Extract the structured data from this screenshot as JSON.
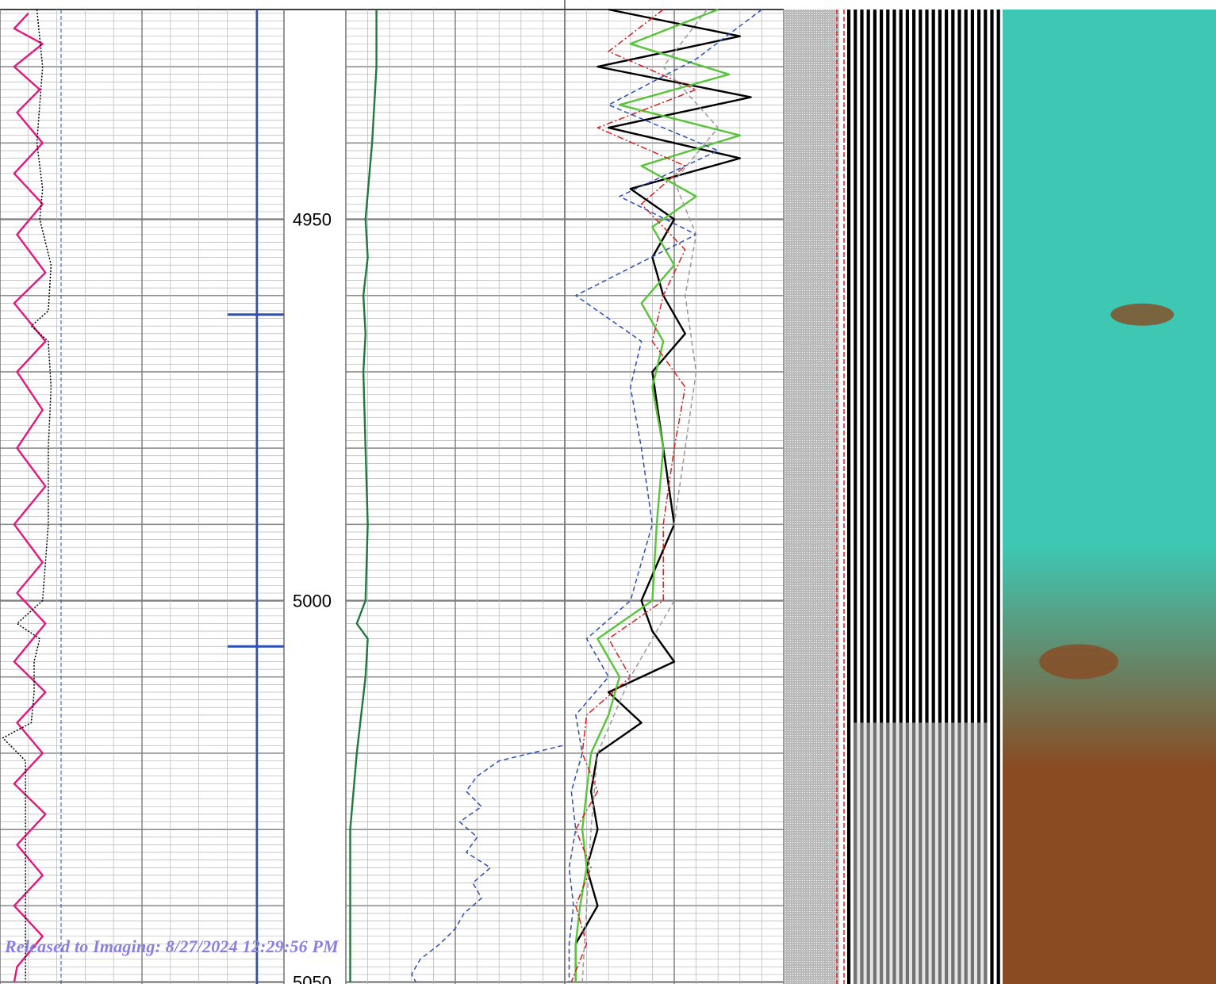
{
  "chart_data": {
    "type": "line",
    "depth_range": [
      4922.5,
      5050
    ],
    "depth_ticks": [
      4950,
      5000,
      5050
    ],
    "depth_tick_labels": [
      "4950",
      "5000",
      "5050"
    ],
    "grid": true,
    "tracks": [
      {
        "track": 1,
        "scale": [
          0,
          1
        ],
        "series": [
          {
            "color": "#e0187f",
            "style": "solid",
            "depth": [
              4923,
              4925,
              4927,
              4930,
              4933,
              4936,
              4940,
              4944,
              4948,
              4952,
              4957,
              4961,
              4966,
              4970,
              4975,
              4980,
              4985,
              4990,
              4995,
              4999,
              5003,
              5008,
              5012,
              5016,
              5020,
              5024,
              5028,
              5032,
              5036,
              5040,
              5044,
              5048,
              5050
            ],
            "value": [
              0.1,
              0.05,
              0.15,
              0.05,
              0.14,
              0.06,
              0.15,
              0.05,
              0.15,
              0.06,
              0.16,
              0.05,
              0.16,
              0.06,
              0.15,
              0.06,
              0.16,
              0.05,
              0.15,
              0.06,
              0.16,
              0.05,
              0.16,
              0.06,
              0.15,
              0.05,
              0.16,
              0.06,
              0.15,
              0.05,
              0.15,
              0.06,
              0.05
            ]
          },
          {
            "color": "#000000",
            "style": "dotted",
            "depth": [
              4922.5,
              4930,
              4940,
              4946,
              4950,
              4956,
              4962,
              4964,
              4966,
              4972,
              4980,
              4990,
              5000,
              5003,
              5005,
              5008,
              5012,
              5016,
              5018,
              5021,
              5030,
              5040,
              5050
            ],
            "value": [
              0.13,
              0.15,
              0.13,
              0.15,
              0.14,
              0.18,
              0.17,
              0.11,
              0.17,
              0.18,
              0.17,
              0.17,
              0.15,
              0.06,
              0.14,
              0.12,
              0.12,
              0.11,
              0.01,
              0.09,
              0.09,
              0.09,
              0.09
            ]
          }
        ]
      },
      {
        "track": 2,
        "scale": [
          0,
          1
        ],
        "series": [
          {
            "color": "#1f7a3c",
            "style": "solid",
            "depth": [
              4922.5,
              4930,
              4940,
              4950,
              4955,
              4960,
              4965,
              4970,
              4980,
              4990,
              5000,
              5003,
              5005,
              5010,
              5020,
              5030,
              5040,
              5050
            ],
            "value": [
              0.14,
              0.14,
              0.12,
              0.09,
              0.1,
              0.08,
              0.09,
              0.08,
              0.09,
              0.1,
              0.09,
              0.05,
              0.1,
              0.09,
              0.05,
              0.02,
              0.02,
              0.02
            ]
          },
          {
            "color": "#2b4fb5",
            "style": "dashed",
            "depth": [
              5019,
              5021,
              5023,
              5025,
              5027,
              5029,
              5031,
              5033,
              5035,
              5037,
              5039,
              5041,
              5043,
              5045,
              5047,
              5049,
              5050
            ],
            "value": [
              0.99,
              0.7,
              0.6,
              0.55,
              0.62,
              0.52,
              0.6,
              0.55,
              0.66,
              0.58,
              0.62,
              0.54,
              0.5,
              0.43,
              0.34,
              0.3,
              0.32
            ]
          }
        ]
      },
      {
        "track": 3,
        "scale": [
          0,
          1
        ],
        "series": [
          {
            "color": "#000000",
            "style": "solid",
            "depth": [
              4922.5,
              4926,
              4930,
              4934,
              4938,
              4942,
              4946,
              4950,
              4955,
              4960,
              4965,
              4970,
              4980,
              4990,
              5000,
              5004,
              5008,
              5012,
              5016,
              5020,
              5025,
              5030,
              5035,
              5040,
              5045,
              5050
            ],
            "value": [
              0.2,
              0.8,
              0.15,
              0.85,
              0.2,
              0.8,
              0.3,
              0.5,
              0.4,
              0.45,
              0.55,
              0.4,
              0.45,
              0.5,
              0.35,
              0.4,
              0.5,
              0.2,
              0.35,
              0.15,
              0.12,
              0.15,
              0.1,
              0.15,
              0.05,
              0.05
            ]
          },
          {
            "color": "#58c43a",
            "style": "solid",
            "depth": [
              4922.5,
              4927,
              4931,
              4935,
              4939,
              4943,
              4947,
              4951,
              4956,
              4961,
              4966,
              4972,
              4980,
              4990,
              5000,
              5005,
              5010,
              5015,
              5020,
              5025,
              5030,
              5035,
              5040,
              5045,
              5050
            ],
            "value": [
              0.7,
              0.3,
              0.75,
              0.25,
              0.8,
              0.35,
              0.6,
              0.4,
              0.5,
              0.35,
              0.45,
              0.4,
              0.45,
              0.42,
              0.4,
              0.15,
              0.25,
              0.2,
              0.12,
              0.1,
              0.08,
              0.1,
              0.07,
              0.05,
              0.05
            ]
          },
          {
            "color": "#d42020",
            "style": "dashdot",
            "depth": [
              4922.5,
              4928,
              4933,
              4938,
              4943,
              4948,
              4954,
              4960,
              4966,
              4972,
              4980,
              4990,
              5000,
              5005,
              5010,
              5015,
              5020,
              5025,
              5030,
              5035,
              5040,
              5045,
              5050
            ],
            "value": [
              0.45,
              0.2,
              0.6,
              0.15,
              0.55,
              0.35,
              0.55,
              0.45,
              0.4,
              0.55,
              0.5,
              0.45,
              0.45,
              0.2,
              0.3,
              0.1,
              0.08,
              0.15,
              0.05,
              0.12,
              0.05,
              0.1,
              0.03
            ]
          },
          {
            "color": "#2b4fb5",
            "style": "dashed",
            "depth": [
              4922.5,
              4929,
              4935,
              4941,
              4947,
              4952,
              4960,
              4966,
              4972,
              4980,
              4990,
              5000,
              5005,
              5010,
              5015,
              5020,
              5025,
              5030,
              5035,
              5040,
              5045,
              5050
            ],
            "value": [
              0.9,
              0.6,
              0.2,
              0.7,
              0.25,
              0.6,
              0.05,
              0.35,
              0.3,
              0.35,
              0.4,
              0.3,
              0.1,
              0.2,
              0.05,
              0.08,
              0.03,
              0.05,
              0.02,
              0.04,
              0.02,
              0.02
            ]
          },
          {
            "color": "#9a9a9a",
            "style": "dashed",
            "depth": [
              4922.5,
              4930,
              4938,
              4945,
              4952,
              4960,
              4970,
              4980,
              4990,
              5000,
              5010,
              5020,
              5030,
              5040,
              5050
            ],
            "value": [
              0.65,
              0.45,
              0.7,
              0.5,
              0.6,
              0.55,
              0.6,
              0.55,
              0.5,
              0.5,
              0.3,
              0.15,
              0.12,
              0.1,
              0.08
            ]
          }
        ]
      }
    ],
    "markers": [
      {
        "depth": 4962.5
      },
      {
        "depth": 5006
      }
    ],
    "image_tracks": [
      {
        "kind": "waveform",
        "colors": [
          "#000000",
          "#ffffff"
        ]
      },
      {
        "kind": "variable-density",
        "colors": [
          "#3ec8b4",
          "#8a4a22"
        ]
      }
    ]
  },
  "stamp": {
    "text": "Released to Imaging: 8/27/2024 12:29:56 PM",
    "color": "#8a7ee0"
  }
}
